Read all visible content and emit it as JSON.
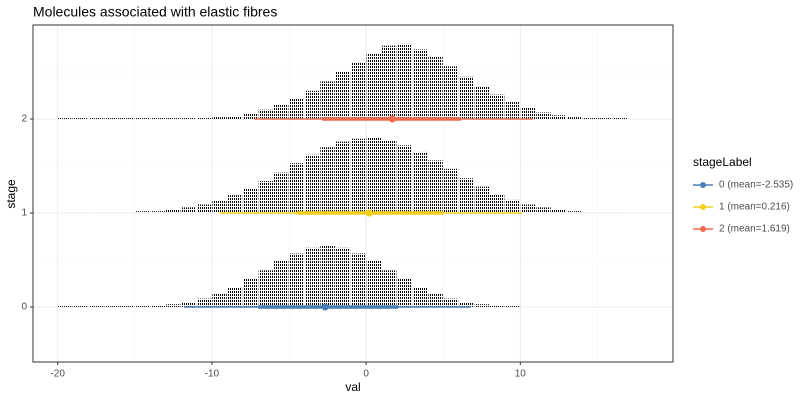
{
  "chart_data": {
    "type": "dots",
    "title": "Molecules associated with elastic fibres",
    "x_label": "val",
    "y_label": "stage",
    "legend_title": "stageLabel",
    "xlim": [
      -21.6,
      19.9
    ],
    "ylim": [
      -0.585,
      3.0
    ],
    "xticks": [
      -20,
      -10,
      0,
      10
    ],
    "yticks": [
      0,
      1,
      2
    ],
    "x_minor_ticks": [
      -15,
      -5,
      5,
      15
    ],
    "y_minor_ticks": [
      0.5,
      1.5,
      2.5
    ],
    "grid": true,
    "legend_position": "right",
    "dot_color": "#c8c8c8",
    "bins": [
      -20,
      -19,
      -18,
      -17,
      -16,
      -15,
      -14,
      -13,
      -12,
      -11,
      -10,
      -9,
      -8,
      -7,
      -6,
      -5,
      -4,
      -3,
      -2,
      -1,
      0,
      1,
      2,
      3,
      4,
      5,
      6,
      7,
      8,
      9,
      10,
      11,
      12,
      13,
      14,
      15,
      16,
      17
    ],
    "series": [
      {
        "name": "0 (mean=-2.535)",
        "color": "#4a7fb5",
        "stage": 0,
        "heights": [
          0.01,
          0.01,
          0.01,
          0.01,
          0.01,
          0.01,
          0.02,
          0.03,
          0.05,
          0.09,
          0.14,
          0.21,
          0.3,
          0.39,
          0.49,
          0.57,
          0.63,
          0.65,
          0.63,
          0.57,
          0.49,
          0.39,
          0.3,
          0.21,
          0.14,
          0.09,
          0.05,
          0.03,
          0.02,
          0.01,
          0,
          0,
          0,
          0,
          0,
          0,
          0
        ],
        "point": -2.65,
        "inner": [
          -7.0,
          2.07
        ],
        "outer": [
          -11.8,
          6.8
        ]
      },
      {
        "name": "1 (mean=0.216)",
        "color": "#f2cf1d",
        "stage": 1,
        "heights": [
          0.01,
          0.01,
          0.01,
          0.01,
          0.01,
          0.02,
          0.02,
          0.04,
          0.06,
          0.09,
          0.13,
          0.19,
          0.26,
          0.34,
          0.43,
          0.53,
          0.62,
          0.7,
          0.76,
          0.79,
          0.8,
          0.77,
          0.72,
          0.65,
          0.56,
          0.47,
          0.37,
          0.28,
          0.2,
          0.14,
          0.09,
          0.06,
          0.04,
          0.02,
          0.01,
          0.01,
          0.01
        ],
        "point": 0.2,
        "inner": [
          -4.5,
          5.0
        ],
        "outer": [
          -9.5,
          10.1
        ]
      },
      {
        "name": "2 (mean=1.619)",
        "color": "#f0694d",
        "stage": 2,
        "heights": [
          0.01,
          0.01,
          0.01,
          0.01,
          0.01,
          0.01,
          0.01,
          0.01,
          0.01,
          0.01,
          0.02,
          0.03,
          0.06,
          0.1,
          0.15,
          0.22,
          0.3,
          0.4,
          0.5,
          0.6,
          0.7,
          0.78,
          0.8,
          0.74,
          0.66,
          0.56,
          0.45,
          0.35,
          0.26,
          0.18,
          0.12,
          0.07,
          0.04,
          0.02,
          0.01,
          0.01,
          0.01
        ],
        "point": 1.7,
        "inner": [
          -2.85,
          6.15
        ],
        "outer": [
          -7.25,
          10.8
        ]
      }
    ]
  }
}
